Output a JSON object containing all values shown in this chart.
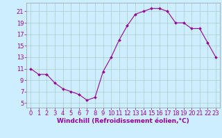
{
  "x": [
    0,
    1,
    2,
    3,
    4,
    5,
    6,
    7,
    8,
    9,
    10,
    11,
    12,
    13,
    14,
    15,
    16,
    17,
    18,
    19,
    20,
    21,
    22,
    23
  ],
  "y": [
    11,
    10,
    10,
    8.5,
    7.5,
    7,
    6.5,
    5.5,
    6,
    10.5,
    13,
    16,
    18.5,
    20.5,
    21,
    21.5,
    21.5,
    21,
    19,
    19,
    18,
    18,
    15.5,
    13
  ],
  "line_color": "#990099",
  "marker": "D",
  "marker_size": 2.0,
  "bg_color": "#cceeff",
  "grid_color": "#aacccc",
  "xlabel": "Windchill (Refroidissement éolien,°C)",
  "xlabel_color": "#990099",
  "xlabel_fontsize": 6.5,
  "ylabel_ticks": [
    5,
    7,
    9,
    11,
    13,
    15,
    17,
    19,
    21
  ],
  "xtick_labels": [
    "0",
    "1",
    "2",
    "3",
    "4",
    "5",
    "6",
    "7",
    "8",
    "9",
    "10",
    "11",
    "12",
    "13",
    "14",
    "15",
    "16",
    "17",
    "18",
    "19",
    "20",
    "21",
    "22",
    "23"
  ],
  "ylim": [
    4.2,
    22.5
  ],
  "xlim": [
    -0.5,
    23.5
  ],
  "tick_color": "#990099",
  "tick_fontsize": 6,
  "spine_color": "#999999",
  "line_width": 0.8
}
